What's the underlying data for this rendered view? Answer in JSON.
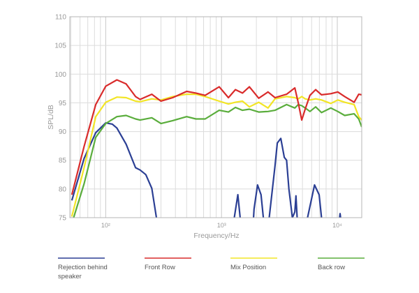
{
  "chart_data": {
    "type": "line",
    "title": "",
    "xlabel": "Frequency/Hz",
    "ylabel": "SPL/dB",
    "xscale": "log",
    "xlim": [
      49,
      16250
    ],
    "ylim": [
      75,
      110
    ],
    "grid": true,
    "x_ticks": [
      {
        "value": 100,
        "label": "10²"
      },
      {
        "value": 1000,
        "label": "10³"
      },
      {
        "value": 10000,
        "label": "10⁴"
      }
    ],
    "y_ticks": [
      {
        "value": 75,
        "label": "75"
      },
      {
        "value": 80,
        "label": "80"
      },
      {
        "value": 85,
        "label": "85"
      },
      {
        "value": 90,
        "label": "90"
      },
      {
        "value": 95,
        "label": "95"
      },
      {
        "value": 100,
        "label": "100"
      },
      {
        "value": 105,
        "label": "105"
      },
      {
        "value": 110,
        "label": "110"
      }
    ],
    "legend_placement": "bottom",
    "x": [
      51,
      65,
      82,
      100,
      125,
      150,
      181,
      198,
      250,
      300,
      379,
      500,
      601,
      723,
      955,
      1148,
      1318,
      1517,
      1741,
      2095,
      2521,
      2897,
      3648,
      4295,
      4600,
      4930,
      5280,
      5800,
      6500,
      7300,
      8790,
      10090,
      11580,
      13960,
      15300,
      16250
    ],
    "series": [
      {
        "name": "Front Row",
        "color": "#d92b2b",
        "values": [
          79,
          87.4,
          94.7,
          97.9,
          99,
          98.3,
          96.1,
          95.6,
          96.5,
          95.3,
          95.9,
          97,
          96.7,
          96.3,
          97.8,
          95.9,
          97.3,
          96.7,
          97.8,
          95.8,
          96.9,
          95.9,
          96.5,
          97.6,
          95,
          92,
          93.9,
          96.3,
          97.3,
          96.4,
          96.6,
          96.9,
          96.1,
          95.1,
          96.5,
          96.4
        ]
      },
      {
        "name": "Mix Position",
        "color": "#f2e526",
        "values": [
          75.2,
          83.7,
          92.6,
          95.1,
          96,
          95.9,
          95.3,
          95.2,
          95.7,
          95.5,
          96.1,
          96.5,
          96.5,
          96.1,
          95.3,
          94.8,
          95.1,
          95.3,
          94.3,
          95.1,
          94.1,
          95.7,
          96.1,
          95.9,
          95.7,
          96.1,
          95.7,
          95.5,
          95.7,
          95.5,
          94.9,
          95.5,
          95.1,
          94.7,
          92.6,
          92
        ]
      },
      {
        "name": "Back row",
        "color": "#5aad3c",
        "values": [
          74,
          80.9,
          89,
          91.4,
          92.6,
          92.8,
          92.2,
          92,
          92.4,
          91.4,
          91.9,
          92.6,
          92.2,
          92.2,
          93.7,
          93.4,
          94.2,
          93.7,
          93.9,
          93.4,
          93.5,
          93.7,
          94.7,
          94.1,
          94.7,
          94.5,
          94.1,
          93.5,
          94.3,
          93.3,
          94.1,
          93.5,
          92.8,
          93.1,
          92.2,
          90.8
        ]
      },
      {
        "name": "Rejection behind speaker",
        "color": "#2b3f94",
        "x": [
          51,
          65,
          82,
          100,
          114,
          125,
          150,
          181,
          198,
          222,
          250,
          274,
          281,
          null,
          1259,
          1289,
          1383,
          1448,
          1482,
          null,
          1866,
          1910,
          2047,
          2193,
          2297,
          2351,
          null,
          2521,
          2580,
          2897,
          3034,
          3251,
          3483,
          3648,
          3820,
          4094,
          4295,
          4395,
          4497,
          4560,
          null,
          5410,
          5535,
          6353,
          6966,
          7300,
          7470,
          null,
          10330,
          10570,
          10820
        ],
        "values": [
          78,
          85.3,
          89.8,
          91.5,
          91.3,
          90.6,
          87.8,
          83.7,
          83.3,
          82.5,
          80.1,
          75,
          73,
          null,
          73,
          75,
          79,
          75,
          73,
          null,
          73,
          76.5,
          80.7,
          79,
          75,
          73,
          null,
          73,
          75,
          84,
          88,
          88.8,
          85.5,
          85,
          80,
          75,
          76,
          78.8,
          75,
          73,
          null,
          73,
          75,
          80.7,
          79,
          75,
          73,
          null,
          74,
          75.7,
          74
        ]
      }
    ],
    "legend": [
      {
        "label": "Rejection behind",
        "label2": "speaker",
        "color": "#2b3f94"
      },
      {
        "label": "Front Row",
        "color": "#d92b2b"
      },
      {
        "label": "Mix Position",
        "color": "#f2e526"
      },
      {
        "label": "Back row",
        "color": "#5aad3c"
      }
    ]
  }
}
